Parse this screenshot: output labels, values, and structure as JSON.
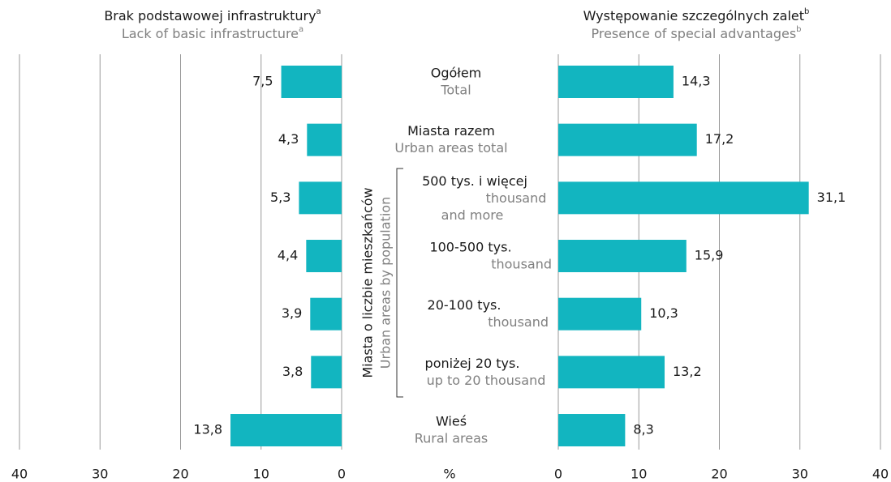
{
  "unit": "%",
  "group_label": {
    "pl": "Miasta o liczbie mieszkańców",
    "en": "Urban areas by population"
  },
  "categories": [
    {
      "pl": "Ogółem",
      "en": [
        "Total"
      ]
    },
    {
      "pl": "Miasta razem",
      "en": [
        "Urban areas total"
      ]
    },
    {
      "pl": "500 tys. i więcej",
      "en": [
        "thousand",
        "and more"
      ]
    },
    {
      "pl": "100-500 tys.",
      "en": [
        "thousand"
      ]
    },
    {
      "pl": "20-100 tys.",
      "en": [
        "thousand"
      ]
    },
    {
      "pl": "poniżej 20 tys.",
      "en": [
        "up to 20 thousand"
      ]
    },
    {
      "pl": "Wieś",
      "en": [
        "Rural areas"
      ]
    }
  ],
  "chart_data": [
    {
      "type": "bar",
      "orientation": "horizontal",
      "direction": "left",
      "title": "Brak podstawowej infrastruktury",
      "title_note": "a",
      "subtitle": "Lack of basic infrastructure",
      "subtitle_note": "a",
      "values": [
        7.5,
        4.3,
        5.3,
        4.4,
        3.9,
        3.8,
        13.8
      ],
      "value_labels": [
        "7,5",
        "4,3",
        "5,3",
        "4,4",
        "3,9",
        "3,8",
        "13,8"
      ],
      "color": "#12b5c0",
      "xlim": [
        0,
        40
      ],
      "xticks": [
        0,
        10,
        20,
        30,
        40
      ],
      "grid": true
    },
    {
      "type": "bar",
      "orientation": "horizontal",
      "direction": "right",
      "title": "Występowanie szczególnych zalet",
      "title_note": "b",
      "subtitle": "Presence of special advantages",
      "subtitle_note": "b",
      "values": [
        14.3,
        17.2,
        31.1,
        15.9,
        10.3,
        13.2,
        8.3
      ],
      "value_labels": [
        "14,3",
        "17,2",
        "31,1",
        "15,9",
        "10,3",
        "13,2",
        "8,3"
      ],
      "color": "#12b5c0",
      "xlim": [
        0,
        40
      ],
      "xticks": [
        0,
        10,
        20,
        30,
        40
      ],
      "grid": true
    }
  ]
}
